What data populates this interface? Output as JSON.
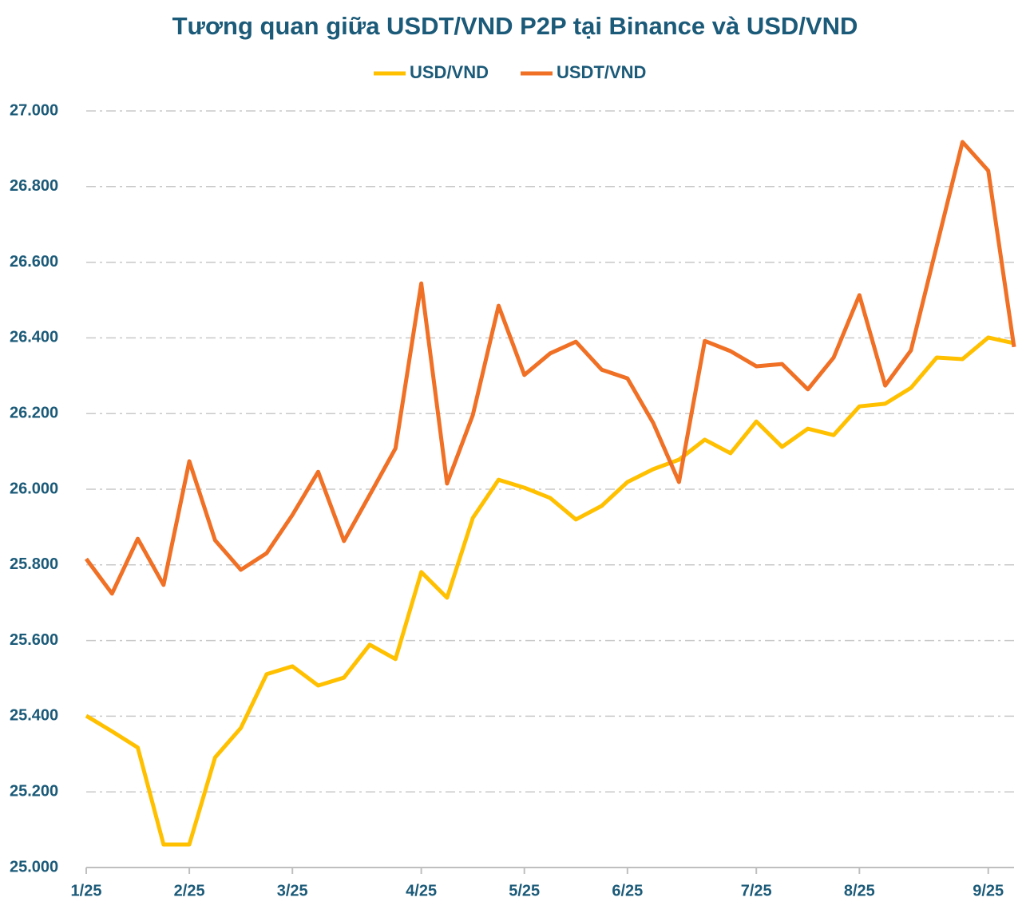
{
  "chart_data": {
    "type": "line",
    "title": "Tương quan giữa USDT/VND P2P tại Binance và USD/VND",
    "categories": [
      "1/25",
      null,
      null,
      null,
      "2/25",
      null,
      null,
      null,
      "3/25",
      null,
      null,
      null,
      null,
      "4/25",
      null,
      null,
      null,
      "5/25",
      null,
      null,
      null,
      "6/25",
      null,
      null,
      null,
      null,
      "7/25",
      null,
      null,
      null,
      "8/25",
      null,
      null,
      null,
      null,
      "9/25",
      null
    ],
    "series": [
      {
        "name": "USD/VND",
        "color": "#FFC000",
        "values": [
          25401,
          25360,
          25317,
          25061,
          25061,
          25291,
          25369,
          25511,
          25532,
          25481,
          25502,
          25589,
          25551,
          25781,
          25713,
          25924,
          26025,
          26004,
          25977,
          25920,
          25956,
          26019,
          26053,
          26078,
          26131,
          26095,
          26179,
          26112,
          26160,
          26143,
          26219,
          26226,
          26268,
          26348,
          26344,
          26401,
          26386
        ]
      },
      {
        "name": "USDT/VND",
        "color": "#F07025",
        "values": [
          25816,
          25724,
          25869,
          25747,
          26074,
          25865,
          25787,
          25831,
          25932,
          26046,
          25863,
          25985,
          26108,
          26544,
          26015,
          26196,
          26485,
          26302,
          26359,
          26390,
          26316,
          26293,
          26175,
          26019,
          26392,
          26365,
          26325,
          26331,
          26264,
          26348,
          26513,
          26274,
          26367,
          26643,
          26918,
          26842,
          26376
        ]
      }
    ],
    "ylim": [
      25000,
      27000
    ],
    "yticks": [
      {
        "value": 25000,
        "label": "25.000"
      },
      {
        "value": 25200,
        "label": "25.200"
      },
      {
        "value": 25400,
        "label": "25.400"
      },
      {
        "value": 25600,
        "label": "25.600"
      },
      {
        "value": 25800,
        "label": "25.800"
      },
      {
        "value": 26000,
        "label": "26.000"
      },
      {
        "value": 26200,
        "label": "26.200"
      },
      {
        "value": 26400,
        "label": "26.400"
      },
      {
        "value": 26600,
        "label": "26.600"
      },
      {
        "value": 26800,
        "label": "26.800"
      },
      {
        "value": 27000,
        "label": "27.000"
      }
    ],
    "grid": true,
    "legend": "top"
  }
}
